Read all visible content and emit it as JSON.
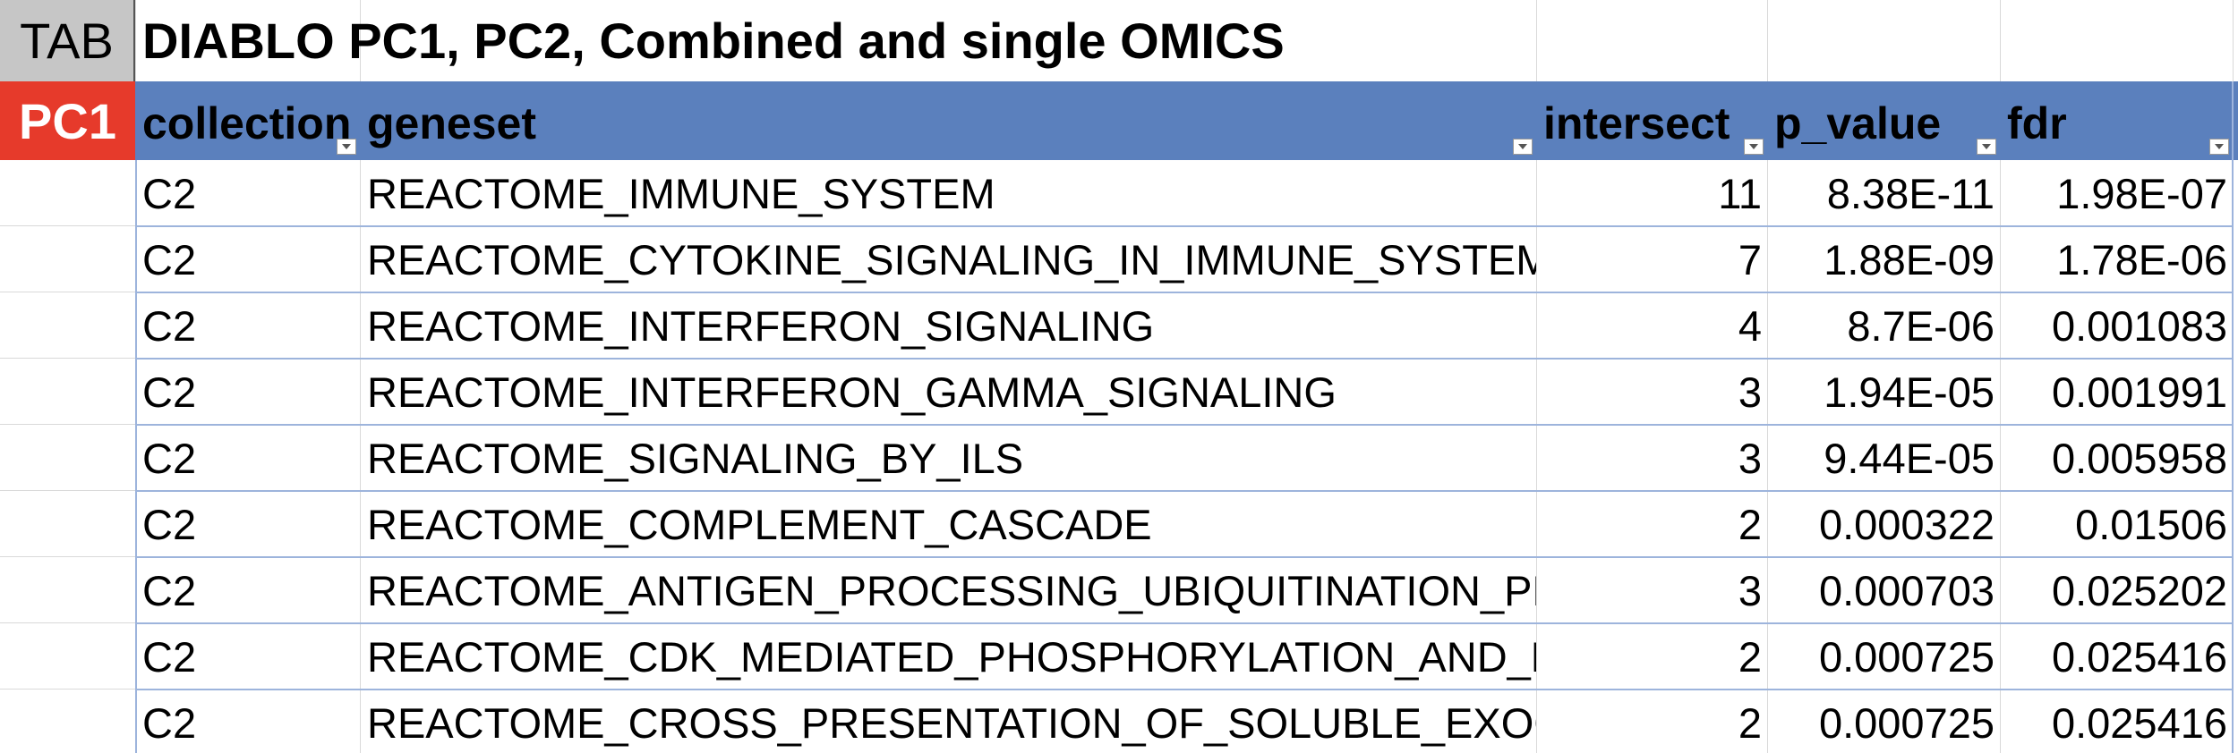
{
  "sheet": {
    "tab_label": "TAB",
    "row_label": "PC1",
    "title": "DIABLO PC1, PC2, Combined and single OMICS"
  },
  "table": {
    "columns": [
      "collection",
      "geneset",
      "intersect",
      "p_value",
      "fdr"
    ],
    "rows": [
      [
        "C2",
        "REACTOME_IMMUNE_SYSTEM",
        "11",
        "8.38E-11",
        "1.98E-07"
      ],
      [
        "C2",
        "REACTOME_CYTOKINE_SIGNALING_IN_IMMUNE_SYSTEM",
        "7",
        "1.88E-09",
        "1.78E-06"
      ],
      [
        "C2",
        "REACTOME_INTERFERON_SIGNALING",
        "4",
        "8.7E-06",
        "0.001083"
      ],
      [
        "C2",
        "REACTOME_INTERFERON_GAMMA_SIGNALING",
        "3",
        "1.94E-05",
        "0.001991"
      ],
      [
        "C2",
        "REACTOME_SIGNALING_BY_ILS",
        "3",
        "9.44E-05",
        "0.005958"
      ],
      [
        "C2",
        "REACTOME_COMPLEMENT_CASCADE",
        "2",
        "0.000322",
        "0.01506"
      ],
      [
        "C2",
        "REACTOME_ANTIGEN_PROCESSING_UBIQUITINATION_PRO",
        "3",
        "0.000703",
        "0.025202"
      ],
      [
        "C2",
        "REACTOME_CDK_MEDIATED_PHOSPHORYLATION_AND_RE",
        "2",
        "0.000725",
        "0.025416"
      ],
      [
        "C2",
        "REACTOME_CROSS_PRESENTATION_OF_SOLUBLE_EXOGEN",
        "2",
        "0.000725",
        "0.025416"
      ]
    ]
  }
}
